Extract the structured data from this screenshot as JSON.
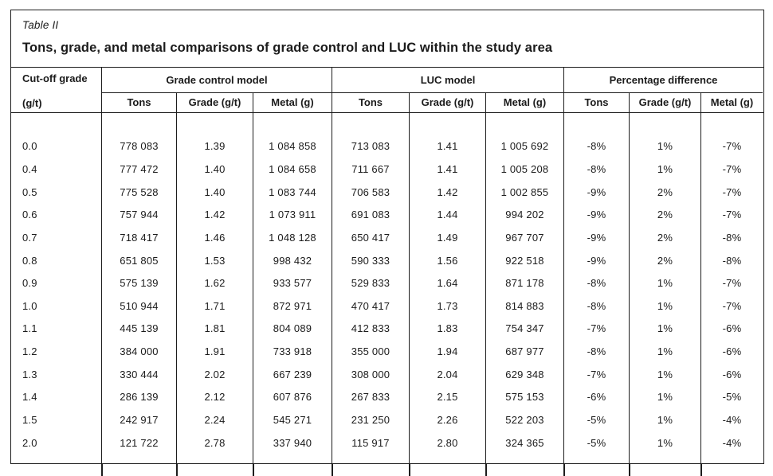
{
  "table": {
    "label": "Table II",
    "title": "Tons, grade, and metal comparisons of grade control and LUC within the study area",
    "columns": {
      "cutoff_line1": "Cut-off grade",
      "cutoff_line2": "(g/t)",
      "groups": [
        {
          "label": "Grade control model",
          "sub": [
            "Tons",
            "Grade (g/t)",
            "Metal (g)"
          ]
        },
        {
          "label": "LUC model",
          "sub": [
            "Tons",
            "Grade (g/t)",
            "Metal (g)"
          ]
        },
        {
          "label": "Percentage difference",
          "sub": [
            "Tons",
            "Grade (g/t)",
            "Metal (g)"
          ]
        }
      ]
    },
    "rows": [
      {
        "cutoff": "0.0",
        "gc": [
          "778 083",
          "1.39",
          "1 084 858"
        ],
        "luc": [
          "713 083",
          "1.41",
          "1 005 692"
        ],
        "pd": [
          "-8%",
          "1%",
          "-7%"
        ]
      },
      {
        "cutoff": "0.4",
        "gc": [
          "777 472",
          "1.40",
          "1 084 658"
        ],
        "luc": [
          "711 667",
          "1.41",
          "1 005 208"
        ],
        "pd": [
          "-8%",
          "1%",
          "-7%"
        ]
      },
      {
        "cutoff": "0.5",
        "gc": [
          "775 528",
          "1.40",
          "1 083 744"
        ],
        "luc": [
          "706 583",
          "1.42",
          "1 002 855"
        ],
        "pd": [
          "-9%",
          "2%",
          "-7%"
        ]
      },
      {
        "cutoff": "0.6",
        "gc": [
          "757 944",
          "1.42",
          "1 073 911"
        ],
        "luc": [
          "691 083",
          "1.44",
          "994 202"
        ],
        "pd": [
          "-9%",
          "2%",
          "-7%"
        ]
      },
      {
        "cutoff": "0.7",
        "gc": [
          "718 417",
          "1.46",
          "1 048 128"
        ],
        "luc": [
          "650 417",
          "1.49",
          "967 707"
        ],
        "pd": [
          "-9%",
          "2%",
          "-8%"
        ]
      },
      {
        "cutoff": "0.8",
        "gc": [
          "651 805",
          "1.53",
          "998 432"
        ],
        "luc": [
          "590 333",
          "1.56",
          "922 518"
        ],
        "pd": [
          "-9%",
          "2%",
          "-8%"
        ]
      },
      {
        "cutoff": "0.9",
        "gc": [
          "575 139",
          "1.62",
          "933 577"
        ],
        "luc": [
          "529 833",
          "1.64",
          "871 178"
        ],
        "pd": [
          "-8%",
          "1%",
          "-7%"
        ]
      },
      {
        "cutoff": "1.0",
        "gc": [
          "510 944",
          "1.71",
          "872 971"
        ],
        "luc": [
          "470 417",
          "1.73",
          "814 883"
        ],
        "pd": [
          "-8%",
          "1%",
          "-7%"
        ]
      },
      {
        "cutoff": "1.1",
        "gc": [
          "445 139",
          "1.81",
          "804 089"
        ],
        "luc": [
          "412 833",
          "1.83",
          "754 347"
        ],
        "pd": [
          "-7%",
          "1%",
          "-6%"
        ]
      },
      {
        "cutoff": "1.2",
        "gc": [
          "384 000",
          "1.91",
          "733 918"
        ],
        "luc": [
          "355 000",
          "1.94",
          "687 977"
        ],
        "pd": [
          "-8%",
          "1%",
          "-6%"
        ]
      },
      {
        "cutoff": "1.3",
        "gc": [
          "330 444",
          "2.02",
          "667 239"
        ],
        "luc": [
          "308 000",
          "2.04",
          "629 348"
        ],
        "pd": [
          "-7%",
          "1%",
          "-6%"
        ]
      },
      {
        "cutoff": "1.4",
        "gc": [
          "286 139",
          "2.12",
          "607 876"
        ],
        "luc": [
          "267 833",
          "2.15",
          "575 153"
        ],
        "pd": [
          "-6%",
          "1%",
          "-5%"
        ]
      },
      {
        "cutoff": "1.5",
        "gc": [
          "242 917",
          "2.24",
          "545 271"
        ],
        "luc": [
          "231 250",
          "2.26",
          "522 203"
        ],
        "pd": [
          "-5%",
          "1%",
          "-4%"
        ]
      },
      {
        "cutoff": "2.0",
        "gc": [
          "121 722",
          "2.78",
          "337 940"
        ],
        "luc": [
          "115 917",
          "2.80",
          "324 365"
        ],
        "pd": [
          "-5%",
          "1%",
          "-4%"
        ]
      }
    ]
  },
  "colors": {
    "border": "#1d1d1d",
    "text": "#1b1b1b",
    "background": "#ffffff"
  }
}
